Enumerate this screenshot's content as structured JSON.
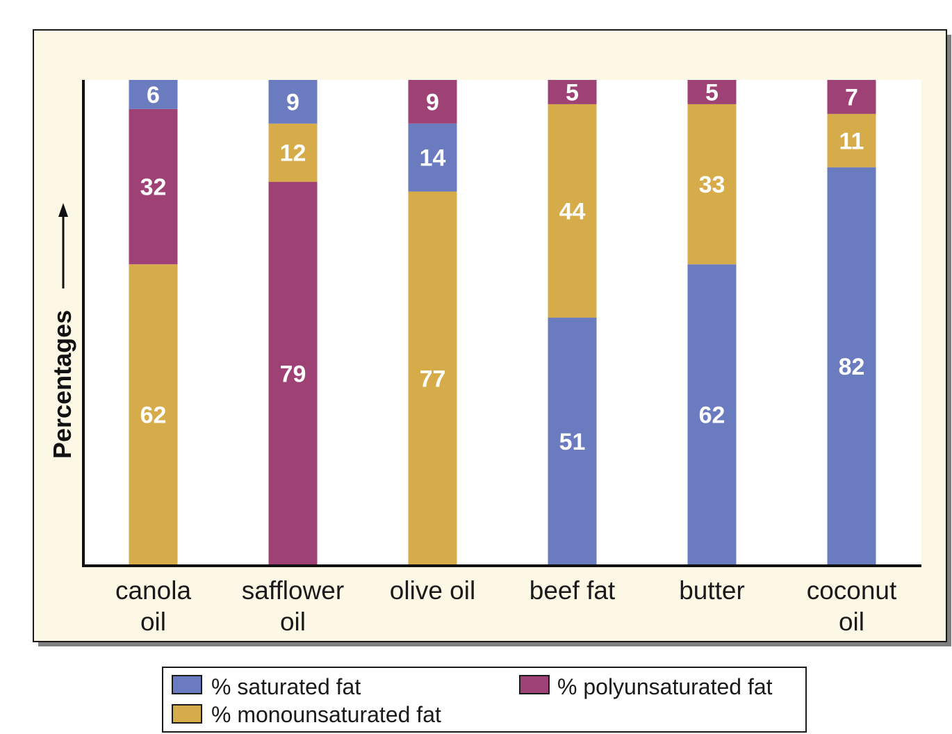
{
  "chart_data": {
    "type": "bar",
    "stacked": true,
    "orientation": "vertical",
    "categories": [
      [
        "canola",
        "oil"
      ],
      [
        "safflower",
        "oil"
      ],
      [
        "olive oil"
      ],
      [
        "beef fat"
      ],
      [
        "butter"
      ],
      [
        "coconut",
        "oil"
      ]
    ],
    "category_names": [
      "canola oil",
      "safflower oil",
      "olive oil",
      "beef fat",
      "butter",
      "coconut oil"
    ],
    "ylabel": "Percentages",
    "xlabel": "",
    "ylim": [
      0,
      100
    ],
    "grid": false,
    "colors": {
      "saturated": "#6b7bbf",
      "monounsaturated": "#d6ac4a",
      "polyunsaturated": "#9e4275",
      "plot_background": "#fdf8e6"
    },
    "series": [
      {
        "key": "saturated",
        "name": "% saturated fat"
      },
      {
        "key": "monounsaturated",
        "name": "% monounsaturated fat"
      },
      {
        "key": "polyunsaturated",
        "name": "% polyunsaturated fat"
      }
    ],
    "stacks": [
      [
        {
          "series": "monounsaturated",
          "value": 62
        },
        {
          "series": "polyunsaturated",
          "value": 32
        },
        {
          "series": "saturated",
          "value": 6
        }
      ],
      [
        {
          "series": "polyunsaturated",
          "value": 79
        },
        {
          "series": "monounsaturated",
          "value": 12
        },
        {
          "series": "saturated",
          "value": 9
        }
      ],
      [
        {
          "series": "monounsaturated",
          "value": 77
        },
        {
          "series": "saturated",
          "value": 14
        },
        {
          "series": "polyunsaturated",
          "value": 9
        }
      ],
      [
        {
          "series": "saturated",
          "value": 51
        },
        {
          "series": "monounsaturated",
          "value": 44
        },
        {
          "series": "polyunsaturated",
          "value": 5
        }
      ],
      [
        {
          "series": "saturated",
          "value": 62
        },
        {
          "series": "monounsaturated",
          "value": 33
        },
        {
          "series": "polyunsaturated",
          "value": 5
        }
      ],
      [
        {
          "series": "saturated",
          "value": 82
        },
        {
          "series": "monounsaturated",
          "value": 11
        },
        {
          "series": "polyunsaturated",
          "value": 7
        }
      ]
    ],
    "legend": {
      "position": "bottom",
      "items": [
        {
          "series": "saturated",
          "label": "% saturated fat"
        },
        {
          "series": "polyunsaturated",
          "label": "% polyunsaturated fat"
        },
        {
          "series": "monounsaturated",
          "label": "% monounsaturated fat"
        }
      ]
    }
  }
}
